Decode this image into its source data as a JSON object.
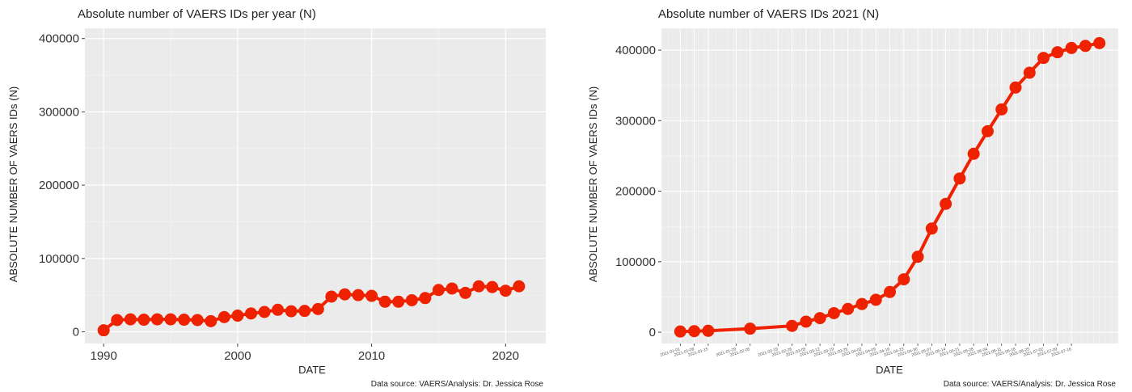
{
  "chart_data": [
    {
      "type": "line",
      "title": "Absolute number of VAERS IDs per year (N)",
      "xlabel": "DATE",
      "ylabel": "ABSOLUTE NUMBER OF VAERS IDs (N)",
      "source": "Data source: VAERS/Analysis: Dr. Jessica Rose",
      "x_ticks": [
        "1990",
        "2000",
        "2010",
        "2020"
      ],
      "y_ticks": [
        "0",
        "100000",
        "200000",
        "300000",
        "400000"
      ],
      "xlim": [
        1988.6,
        2023.0
      ],
      "ylim": [
        -16000,
        414000
      ],
      "grid": true,
      "color": "#ee2200",
      "x": [
        1990,
        1991,
        1992,
        1993,
        1994,
        1995,
        1996,
        1997,
        1998,
        1999,
        2000,
        2001,
        2002,
        2003,
        2004,
        2005,
        2006,
        2007,
        2008,
        2009,
        2010,
        2011,
        2012,
        2013,
        2014,
        2015,
        2016,
        2017,
        2018,
        2019,
        2020,
        2021
      ],
      "values": [
        2000,
        16000,
        17000,
        16500,
        17000,
        17000,
        16500,
        16000,
        14500,
        20000,
        22000,
        25000,
        27000,
        30000,
        28000,
        28500,
        31000,
        48000,
        51000,
        50000,
        49000,
        41000,
        41000,
        43000,
        46000,
        57000,
        59000,
        53000,
        62000,
        61000,
        56000,
        62000
      ]
    },
    {
      "type": "line",
      "title": "Absolute number of VAERS IDs 2021 (N)",
      "xlabel": "DATE",
      "ylabel": "ABSOLUTE NUMBER OF VAERS IDs (N)",
      "source": "Data source: VAERS/Analysis: Dr. Jessica Rose",
      "y_ticks": [
        "0",
        "100000",
        "200000",
        "300000",
        "400000"
      ],
      "ylim": [
        -16000,
        431000
      ],
      "grid": true,
      "color": "#ee2200",
      "x": [
        "2021-01-01",
        "2021-01-08",
        "2021-01-15",
        "2021-02-05",
        "2021-02-26",
        "2021-03-05",
        "2021-03-12",
        "2021-03-19",
        "2021-03-26",
        "2021-04-02",
        "2021-04-09",
        "2021-04-16",
        "2021-04-23",
        "2021-04-30",
        "2021-05-07",
        "2021-05-14",
        "2021-05-21",
        "2021-05-28",
        "2021-06-04",
        "2021-06-11",
        "2021-06-18",
        "2021-06-25",
        "2021-07-02",
        "2021-07-09",
        "2021-07-16",
        "2021-07-23",
        "2021-07-30"
      ],
      "values": [
        1000,
        1500,
        2000,
        5000,
        9000,
        15000,
        20000,
        27000,
        33000,
        40000,
        46000,
        57000,
        75000,
        107000,
        147000,
        182000,
        218000,
        253000,
        285000,
        316000,
        347000,
        368000,
        389000,
        397000,
        403000,
        406000,
        410000
      ],
      "x_tick_labels": [
        "2021-01-01",
        "2021-01-08",
        "2021-01-15",
        "2021-01-29",
        "2021-02-05",
        "2021-02-19",
        "2021-02-26",
        "2021-03-05",
        "2021-03-12",
        "2021-03-19",
        "2021-03-26",
        "2021-04-02",
        "2021-04-09",
        "2021-04-16",
        "2021-04-23",
        "2021-04-30",
        "2021-05-07",
        "2021-05-14",
        "2021-05-21",
        "2021-05-28",
        "2021-06-04",
        "2021-06-11",
        "2021-06-18",
        "2021-06-25",
        "2021-07-02",
        "2021-07-09",
        "2021-07-16"
      ]
    }
  ]
}
